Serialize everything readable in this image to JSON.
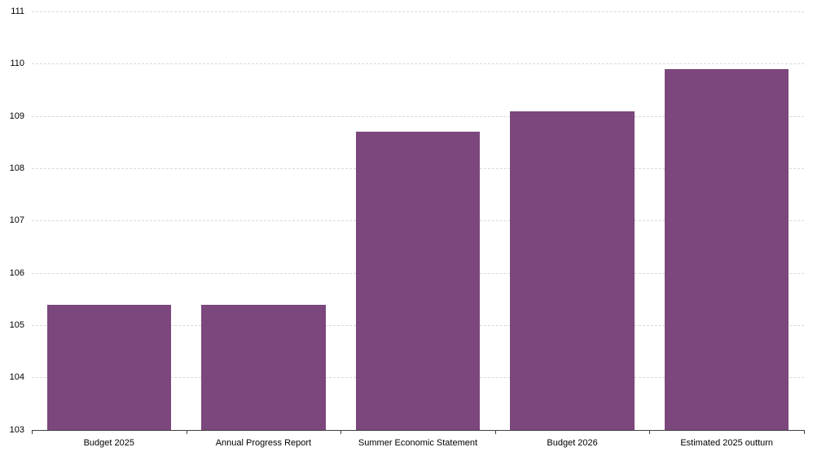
{
  "chart_data": {
    "type": "bar",
    "title": "",
    "xlabel": "",
    "ylabel": "",
    "categories": [
      "Budget 2025",
      "Annual Progress Report",
      "Summer Economic Statement",
      "Budget 2026",
      "Estimated 2025 outturn"
    ],
    "values": [
      105.4,
      105.4,
      108.7,
      109.1,
      109.9
    ],
    "ylim": [
      103,
      111
    ],
    "yticks": [
      103,
      104,
      105,
      106,
      107,
      108,
      109,
      110,
      111
    ],
    "grid": "horizontal-dashed",
    "legend": "none",
    "colors": {
      "bar": "#7B477C",
      "gridline": "#D9D9D9",
      "axis_line": "#404040",
      "tick_label": "#000000",
      "background": "#FFFFFF"
    }
  }
}
